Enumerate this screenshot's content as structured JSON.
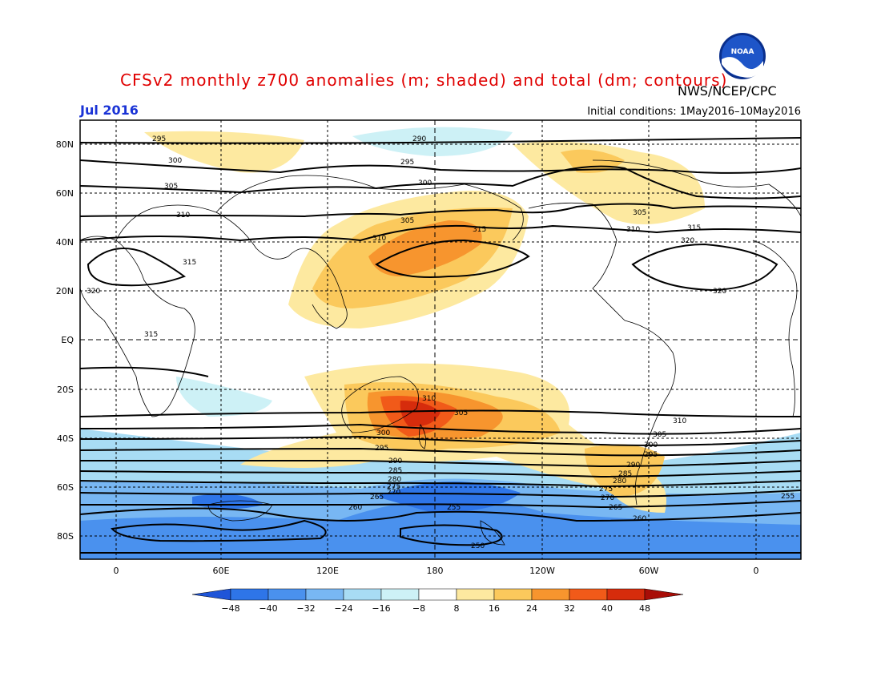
{
  "title": "CFSv2 monthly z700 anomalies (m; shaded) and total (dm; contours)",
  "organization": "NWS/NCEP/CPC",
  "logo_text": "NOAA",
  "valid_month": "Jul 2016",
  "initial_conditions": "Initial conditions: 1May2016–10May2016",
  "lat_labels": [
    "80N",
    "60N",
    "40N",
    "20N",
    "EQ",
    "20S",
    "40S",
    "60S",
    "80S"
  ],
  "lon_labels": [
    "0",
    "60E",
    "120E",
    "180",
    "120W",
    "60W",
    "0"
  ],
  "colorbar": {
    "ticks": [
      "−48",
      "−40",
      "−32",
      "−24",
      "−16",
      "−8",
      "8",
      "16",
      "24",
      "32",
      "40",
      "48"
    ],
    "colors": [
      "#1f55d8",
      "#2e75e8",
      "#4a91ee",
      "#78b7f3",
      "#a8dcf4",
      "#cdf1f6",
      "#ffffff",
      "#fde9a0",
      "#fbc95c",
      "#f7952e",
      "#f15a19",
      "#d62c0c",
      "#a80d07"
    ]
  },
  "contour_labels": [
    "295",
    "290",
    "295",
    "300",
    "300",
    "305",
    "305",
    "310",
    "310",
    "315",
    "315",
    "320",
    "320",
    "315",
    "310",
    "305",
    "300",
    "295",
    "290",
    "285",
    "280",
    "275",
    "270",
    "265",
    "260",
    "255",
    "250",
    "305",
    "310",
    "315",
    "320",
    "310",
    "305",
    "300",
    "295",
    "290",
    "285",
    "280",
    "275",
    "270",
    "265",
    "260",
    "255"
  ]
}
